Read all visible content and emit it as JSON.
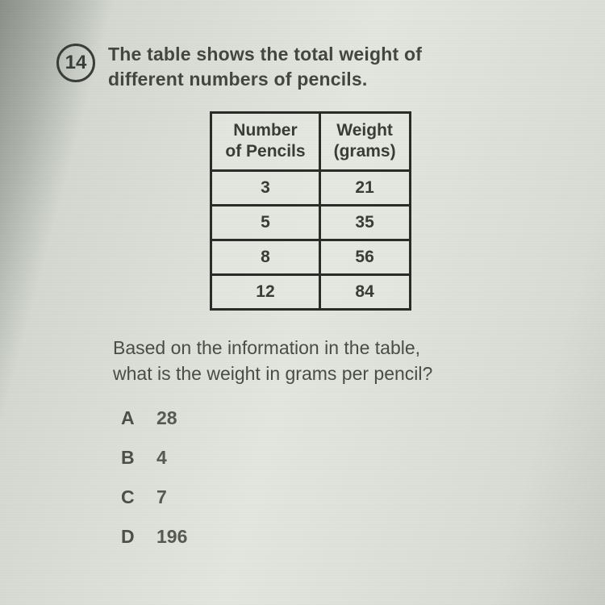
{
  "question": {
    "number": "14",
    "prompt_line1": "The table shows the total weight of",
    "prompt_line2": "different numbers of pencils.",
    "followup_line1": "Based on the information in the table,",
    "followup_line2": "what is the weight in grams per pencil?"
  },
  "table": {
    "columns": [
      {
        "line1": "Number",
        "line2": "of Pencils"
      },
      {
        "line1": "Weight",
        "line2": "(grams)"
      }
    ],
    "rows": [
      [
        "3",
        "21"
      ],
      [
        "5",
        "35"
      ],
      [
        "8",
        "56"
      ],
      [
        "12",
        "84"
      ]
    ],
    "border_color": "#2a2c28",
    "text_color": "#3a3d36",
    "header_fontsize": 21,
    "cell_fontsize": 21
  },
  "options": [
    {
      "letter": "A",
      "value": "28"
    },
    {
      "letter": "B",
      "value": "4"
    },
    {
      "letter": "C",
      "value": "7"
    },
    {
      "letter": "D",
      "value": "196"
    }
  ],
  "style": {
    "background_gradient": [
      "#8a9088",
      "#e2e6de",
      "#c8ccc4"
    ],
    "font_family": "Verdana",
    "text_color": "#44473f",
    "qnum_border": "#3a3e3a"
  }
}
